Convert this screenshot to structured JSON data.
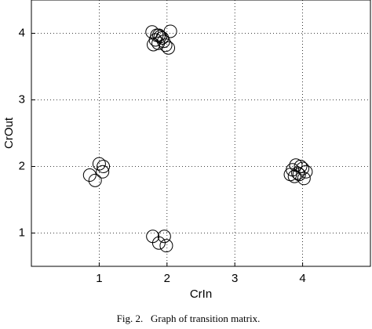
{
  "chart_data": {
    "type": "scatter",
    "xlabel": "CrIn",
    "ylabel": "CrOut",
    "caption": "Fig. 2.   Graph of transition matrix.",
    "x": [
      1.78,
      1.85,
      1.9,
      1.83,
      1.95,
      1.8,
      1.98,
      2.02,
      1.88,
      2.05,
      1.93,
      1.87,
      0.86,
      1.0,
      1.05,
      0.94,
      1.06,
      1.79,
      1.96,
      1.88,
      1.99,
      3.85,
      3.9,
      3.95,
      4.0,
      3.88,
      4.05,
      4.02,
      3.82,
      3.97,
      3.93
    ],
    "values": [
      4.02,
      3.97,
      3.95,
      3.9,
      3.88,
      3.83,
      3.82,
      3.78,
      3.97,
      4.03,
      3.93,
      3.85,
      1.87,
      2.04,
      1.92,
      1.79,
      2.0,
      0.95,
      0.95,
      0.85,
      0.81,
      1.95,
      2.02,
      1.88,
      1.97,
      1.85,
      1.92,
      1.82,
      1.88,
      2.0,
      1.9
    ],
    "color": "#000000",
    "xlim": [
      0,
      5
    ],
    "ylim": [
      0.5,
      4.5
    ],
    "xticks": [
      1,
      2,
      3,
      4
    ],
    "yticks": [
      1,
      2,
      3,
      4
    ],
    "grid": true
  }
}
